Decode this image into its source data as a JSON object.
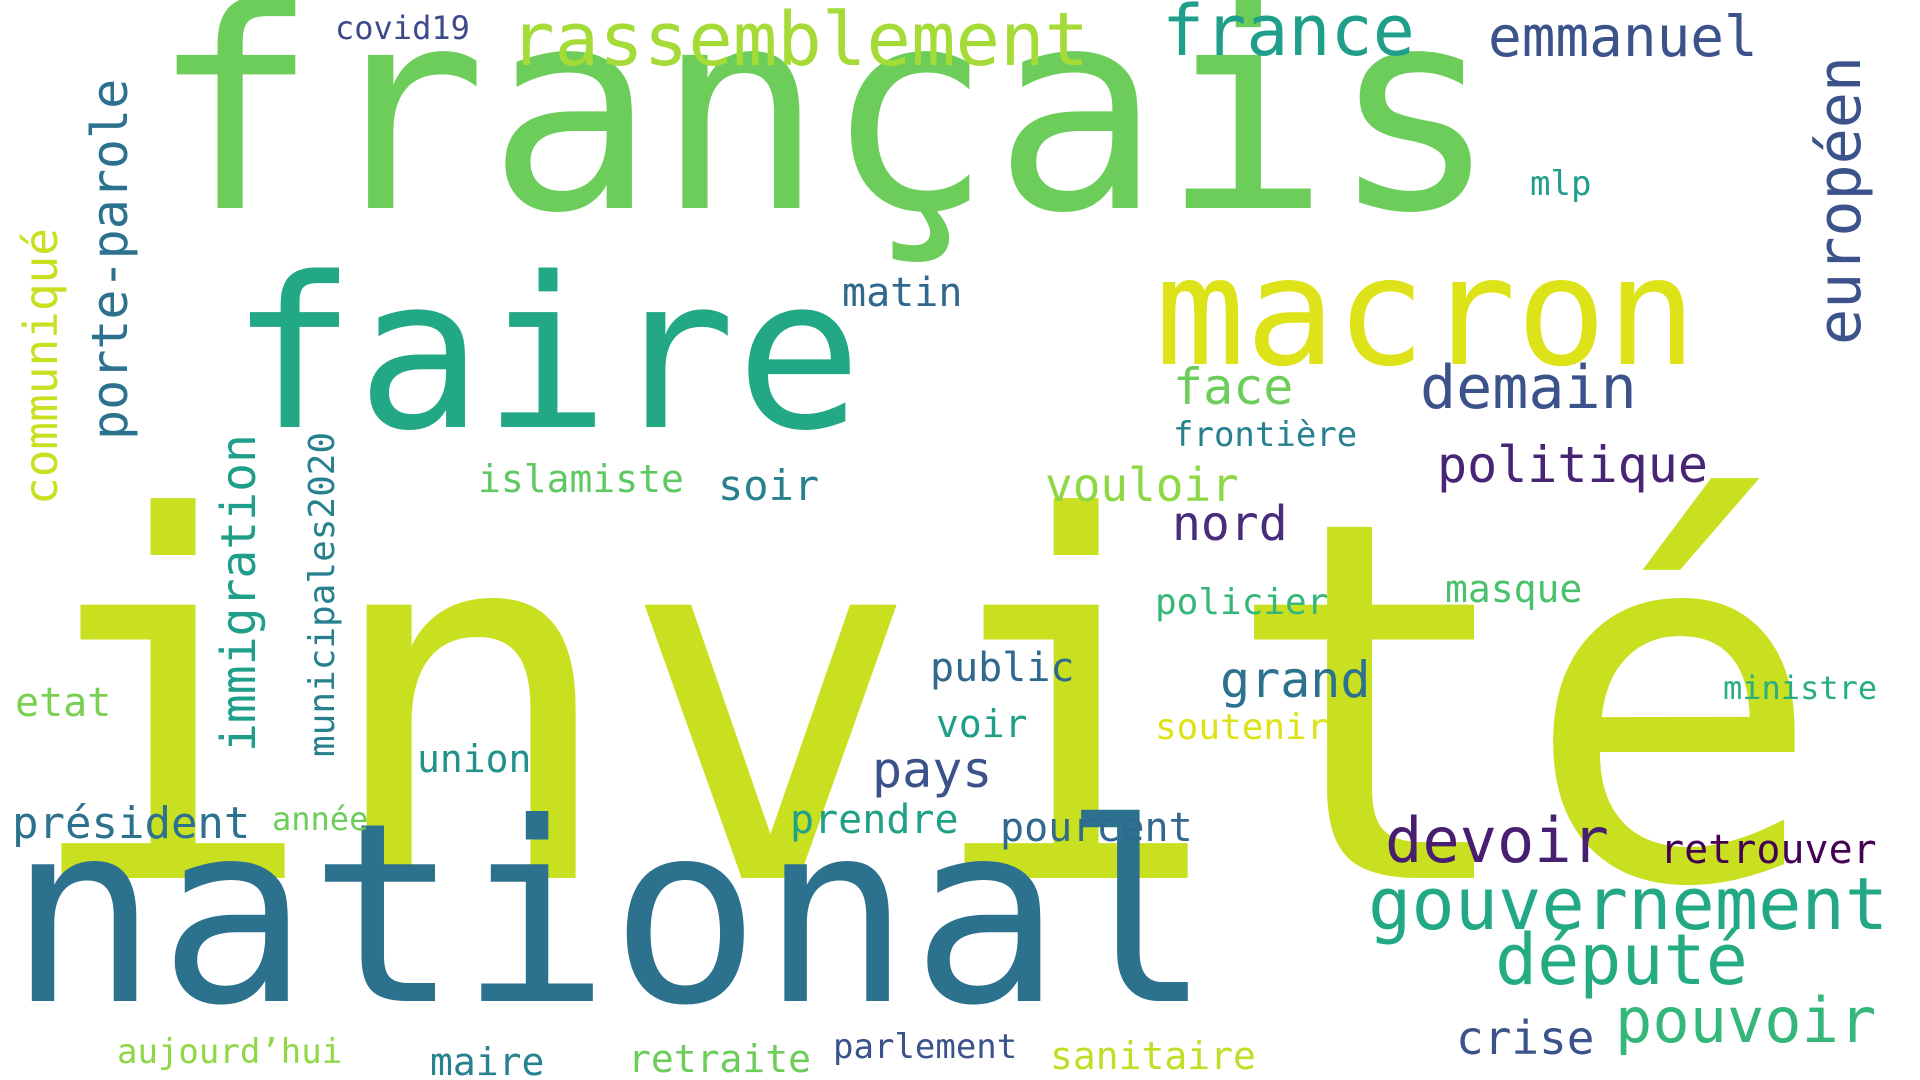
{
  "words": [
    {
      "text": "invité",
      "color": "#c8e020"
    },
    {
      "text": "français",
      "color": "#6ccd5a"
    },
    {
      "text": "national",
      "color": "#2c728e"
    },
    {
      "text": "faire",
      "color": "#22a884"
    },
    {
      "text": "macron",
      "color": "#dde318"
    },
    {
      "text": "rassemblement",
      "color": "#a5db36"
    },
    {
      "text": "france",
      "color": "#1f9e89"
    },
    {
      "text": "emmanuel",
      "color": "#3b528b"
    },
    {
      "text": "européen",
      "color": "#3b528b"
    },
    {
      "text": "gouvernement",
      "color": "#22a884"
    },
    {
      "text": "devoir",
      "color": "#481f70"
    },
    {
      "text": "député",
      "color": "#25ab82"
    },
    {
      "text": "pouvoir",
      "color": "#35b779"
    },
    {
      "text": "demain",
      "color": "#3b528b"
    },
    {
      "text": "politique",
      "color": "#482475"
    },
    {
      "text": "porte-parole",
      "color": "#2c728e"
    },
    {
      "text": "communiqué",
      "color": "#c8e020"
    },
    {
      "text": "immigration",
      "color": "#1f9e89"
    },
    {
      "text": "municipales2020",
      "color": "#27808e"
    },
    {
      "text": "nord",
      "color": "#472d7b"
    },
    {
      "text": "grand",
      "color": "#2c728e"
    },
    {
      "text": "pays",
      "color": "#3b528b"
    },
    {
      "text": "face",
      "color": "#6ccd5a"
    },
    {
      "text": "matin",
      "color": "#31688e"
    },
    {
      "text": "soir",
      "color": "#27808e"
    },
    {
      "text": "vouloir",
      "color": "#8fd744"
    },
    {
      "text": "retrouver",
      "color": "#440154"
    },
    {
      "text": "crise",
      "color": "#3b528b"
    },
    {
      "text": "président",
      "color": "#2c728e"
    },
    {
      "text": "public",
      "color": "#31688e"
    },
    {
      "text": "prendre",
      "color": "#1fa187"
    },
    {
      "text": "pourcent",
      "color": "#31688e"
    },
    {
      "text": "islamiste",
      "color": "#5ec962"
    },
    {
      "text": "frontière",
      "color": "#27808e"
    },
    {
      "text": "policier",
      "color": "#35b779"
    },
    {
      "text": "masque",
      "color": "#4ac16d"
    },
    {
      "text": "mlp",
      "color": "#1f9e89"
    },
    {
      "text": "ministre",
      "color": "#28ae80"
    },
    {
      "text": "etat",
      "color": "#7ad151"
    },
    {
      "text": "union",
      "color": "#21918c"
    },
    {
      "text": "voir",
      "color": "#1f9e89"
    },
    {
      "text": "soutenir",
      "color": "#dde318"
    },
    {
      "text": "année",
      "color": "#6ccd5a"
    },
    {
      "text": "aujourd’hui",
      "color": "#8fd744"
    },
    {
      "text": "maire",
      "color": "#26828e"
    },
    {
      "text": "retraite",
      "color": "#6ccd5a"
    },
    {
      "text": "parlement",
      "color": "#3b528b"
    },
    {
      "text": "sanitaire",
      "color": "#bddf26"
    },
    {
      "text": "covid19",
      "color": "#3e4989"
    }
  ]
}
